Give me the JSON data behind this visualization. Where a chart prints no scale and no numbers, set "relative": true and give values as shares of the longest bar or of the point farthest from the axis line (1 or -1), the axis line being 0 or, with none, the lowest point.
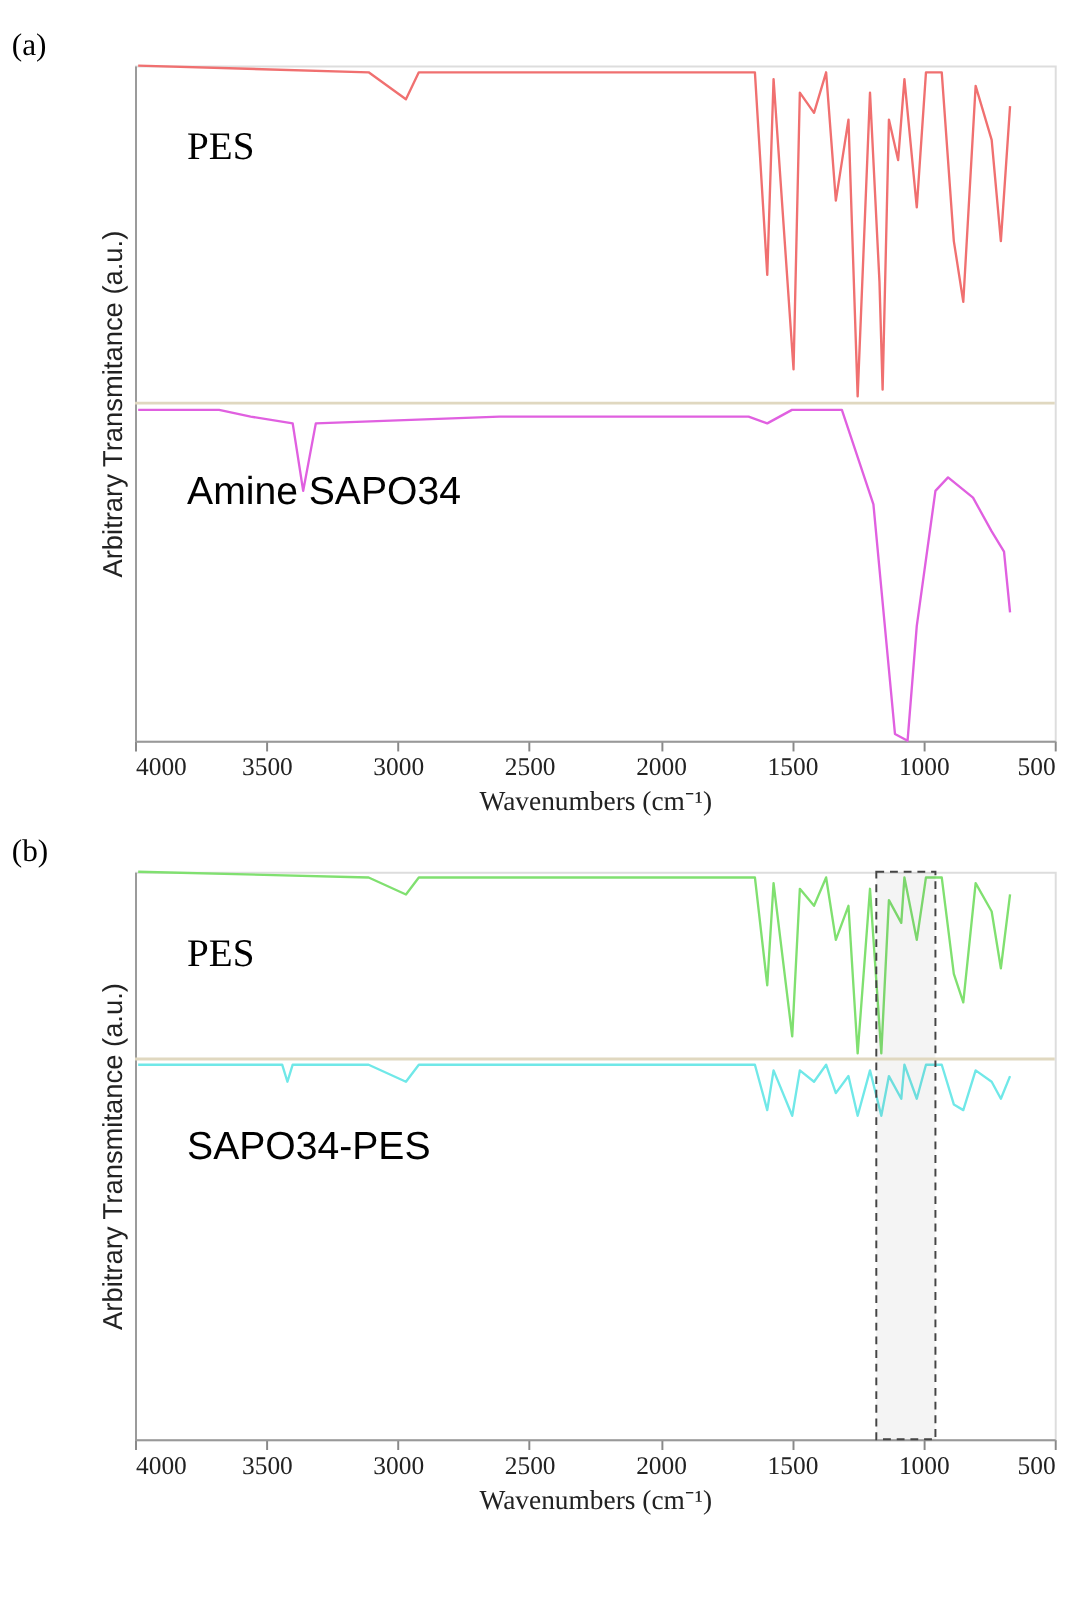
{
  "chart_data": [
    {
      "type": "line",
      "title": "(a)",
      "xlabel": "Wavenumbers (cm⁻¹)",
      "ylabel": "Arbitrary Transmitance (a.u.)",
      "xlim": [
        4000,
        500
      ],
      "xticks": [
        4000,
        3500,
        3000,
        2500,
        2000,
        1500,
        1000,
        500
      ],
      "relative": true,
      "tick_labels": "x",
      "grid": false,
      "ref_lines": [
        {
          "axis": "y",
          "value": 0.5,
          "color": "#e0d8c0"
        }
      ],
      "series": [
        {
          "name": "PES",
          "color": "#f07070",
          "x": [
            3988,
            3111,
            2969,
            2920,
            1902,
            1641,
            1594,
            1570,
            1494,
            1470,
            1416,
            1370,
            1333,
            1285,
            1250,
            1203,
            1167,
            1155,
            1131,
            1096,
            1072,
            1025,
            990,
            930,
            884,
            848,
            801,
            740,
            705,
            670
          ],
          "values": [
            1.0,
            0.99,
            0.95,
            0.99,
            0.99,
            0.99,
            0.69,
            0.98,
            0.55,
            0.96,
            0.93,
            0.99,
            0.8,
            0.92,
            0.51,
            0.96,
            0.68,
            0.52,
            0.92,
            0.86,
            0.98,
            0.79,
            0.99,
            0.99,
            0.74,
            0.65,
            0.97,
            0.89,
            0.74,
            0.94
          ]
        },
        {
          "name": "Amine SAPO34",
          "color": "#e060e0",
          "x": [
            3988,
            3680,
            3560,
            3400,
            3360,
            3312,
            2613,
            1665,
            1594,
            1500,
            1310,
            1190,
            1108,
            1060,
            1025,
            954,
            906,
            811,
            740,
            693,
            670
          ],
          "values": [
            0.49,
            0.49,
            0.48,
            0.47,
            0.37,
            0.47,
            0.48,
            0.48,
            0.47,
            0.49,
            0.49,
            0.35,
            0.01,
            0.0,
            0.17,
            0.37,
            0.39,
            0.36,
            0.31,
            0.28,
            0.19
          ]
        }
      ]
    },
    {
      "type": "line",
      "title": "(b)",
      "xlabel": "Wavenumbers (cm⁻¹)",
      "ylabel": "Arbitrary Transmitance (a.u.)",
      "xlim": [
        4000,
        500
      ],
      "xticks": [
        4000,
        3500,
        3000,
        2500,
        2000,
        1500,
        1000,
        500
      ],
      "relative": true,
      "tick_labels": "x",
      "grid": false,
      "ref_lines": [
        {
          "axis": "y",
          "value": 0.67,
          "color": "#e0d8c0"
        }
      ],
      "bands": [
        {
          "axis": "x",
          "from": 1179,
          "to": 954,
          "color": "#444444"
        }
      ],
      "series": [
        {
          "name": "PES",
          "color": "#80e070",
          "x": [
            3988,
            3111,
            2969,
            2920,
            1641,
            1594,
            1570,
            1499,
            1470,
            1416,
            1370,
            1333,
            1285,
            1250,
            1203,
            1160,
            1131,
            1084,
            1072,
            1025,
            990,
            930,
            884,
            848,
            801,
            740,
            705,
            670
          ],
          "values": [
            1.0,
            0.99,
            0.96,
            0.99,
            0.99,
            0.8,
            0.98,
            0.71,
            0.97,
            0.94,
            0.99,
            0.88,
            0.94,
            0.68,
            0.97,
            0.68,
            0.95,
            0.91,
            0.99,
            0.88,
            0.99,
            0.99,
            0.82,
            0.77,
            0.98,
            0.93,
            0.83,
            0.96
          ]
        },
        {
          "name": "SAPO34-PES",
          "color": "#70e8e8",
          "x": [
            3988,
            3440,
            3420,
            3400,
            3111,
            2969,
            2920,
            1641,
            1594,
            1570,
            1499,
            1470,
            1416,
            1370,
            1333,
            1285,
            1250,
            1203,
            1160,
            1131,
            1084,
            1072,
            1025,
            990,
            930,
            884,
            848,
            801,
            740,
            705,
            670
          ],
          "values": [
            0.66,
            0.66,
            0.63,
            0.66,
            0.66,
            0.63,
            0.66,
            0.66,
            0.58,
            0.65,
            0.57,
            0.65,
            0.63,
            0.66,
            0.61,
            0.64,
            0.57,
            0.65,
            0.57,
            0.64,
            0.6,
            0.66,
            0.6,
            0.66,
            0.66,
            0.59,
            0.58,
            0.65,
            0.63,
            0.6,
            0.64
          ]
        }
      ]
    }
  ]
}
